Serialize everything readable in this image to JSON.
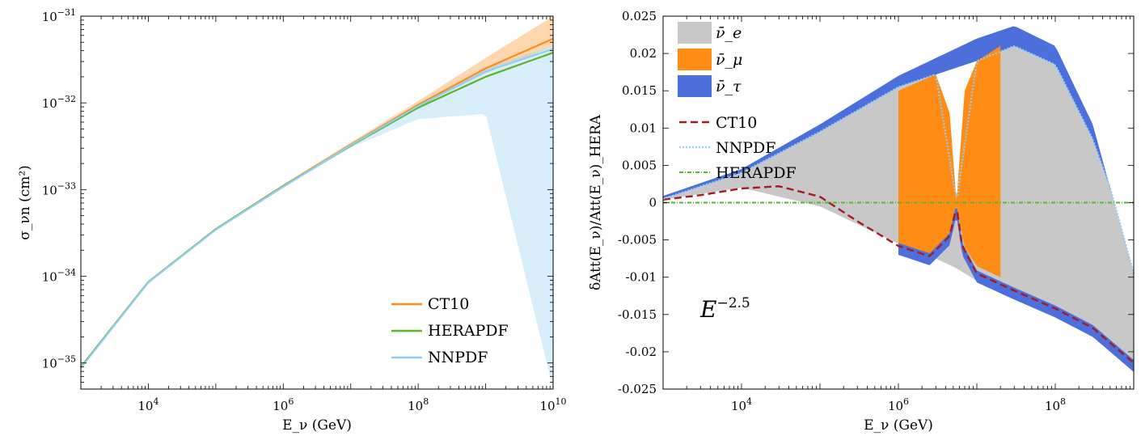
{
  "chart_data": [
    {
      "type": "line",
      "xscale": "log",
      "yscale": "log",
      "xlim": [
        1000,
        10000000000
      ],
      "ylim": [
        5e-36,
        1e-31
      ],
      "xlabel": "E_ν (GeV)",
      "ylabel": "σ_νn (cm²)",
      "x_ticks": [
        {
          "value": 10000,
          "base": "10",
          "exp": "4"
        },
        {
          "value": 1000000,
          "base": "10",
          "exp": "6"
        },
        {
          "value": 100000000,
          "base": "10",
          "exp": "8"
        },
        {
          "value": 10000000000,
          "base": "10",
          "exp": "10"
        }
      ],
      "y_ticks": [
        {
          "value": 1e-35,
          "base": "10",
          "exp": "−35"
        },
        {
          "value": 1e-34,
          "base": "10",
          "exp": "−34"
        },
        {
          "value": 1e-33,
          "base": "10",
          "exp": "−33"
        },
        {
          "value": 1e-32,
          "base": "10",
          "exp": "−32"
        },
        {
          "value": 1e-31,
          "base": "10",
          "exp": "−31"
        }
      ],
      "legend": {
        "position": "bottom-right",
        "entries": [
          "CT10",
          "HERAPDF",
          "NNPDF"
        ]
      },
      "series": [
        {
          "name": "CT10",
          "color": "#ff8c1a",
          "x": [
            1000,
            10000,
            100000,
            1000000,
            10000000,
            100000000,
            1000000000,
            10000000000
          ],
          "y": [
            9e-36,
            8.6e-35,
            3.5e-34,
            1.1e-33,
            3.3e-33,
            9.5e-33,
            2.5e-32,
            5.5e-32
          ],
          "band_upper": [
            9.3e-36,
            8.8e-35,
            3.6e-34,
            1.15e-33,
            3.5e-33,
            1.05e-32,
            3.3e-32,
            1e-31
          ],
          "band_lower": [
            8.8e-36,
            8.4e-35,
            3.4e-34,
            1.07e-33,
            3.2e-33,
            9e-33,
            2.2e-32,
            4.5e-32
          ]
        },
        {
          "name": "HERAPDF",
          "color": "#5db329",
          "x": [
            1000,
            10000,
            100000,
            1000000,
            10000000,
            100000000,
            1000000000,
            10000000000
          ],
          "y": [
            9e-36,
            8.6e-35,
            3.5e-34,
            1.1e-33,
            3.2e-33,
            8.8e-33,
            2e-32,
            3.8e-32
          ]
        },
        {
          "name": "NNPDF",
          "color": "#8ecff2",
          "x": [
            1000,
            10000,
            100000,
            1000000,
            10000000,
            100000000,
            1000000000,
            10000000000
          ],
          "y": [
            8.8e-36,
            8.5e-35,
            3.45e-34,
            1.08e-33,
            3.25e-33,
            9.2e-33,
            2.3e-32,
            4.2e-32
          ],
          "band_upper": [
            9e-36,
            8.7e-35,
            3.55e-34,
            1.12e-33,
            3.35e-33,
            9.8e-33,
            2.6e-32,
            4.5e-32
          ],
          "band_lower": [
            8.6e-36,
            8.3e-35,
            3.35e-34,
            1.04e-33,
            3.05e-33,
            6.5e-33,
            7.5e-33,
            5e-36
          ]
        }
      ]
    },
    {
      "type": "area",
      "xscale": "log",
      "xlim": [
        1000,
        1000000000
      ],
      "ylim": [
        -0.025,
        0.025
      ],
      "xlabel": "E_ν (GeV)",
      "ylabel": "δAtt(E_ν)/Att(E_ν)_HERA",
      "annotation": {
        "base": "E",
        "exp": "−2.5"
      },
      "x_ticks": [
        {
          "value": 10000,
          "base": "10",
          "exp": "4"
        },
        {
          "value": 1000000,
          "base": "10",
          "exp": "6"
        },
        {
          "value": 100000000,
          "base": "10",
          "exp": "8"
        }
      ],
      "y_ticks": [
        {
          "value": 0.025,
          "label": "0.025"
        },
        {
          "value": 0.02,
          "label": "0.02"
        },
        {
          "value": 0.015,
          "label": "0.015"
        },
        {
          "value": 0.01,
          "label": "0.01"
        },
        {
          "value": 0.005,
          "label": "0.005"
        },
        {
          "value": 0,
          "label": "0"
        },
        {
          "value": -0.005,
          "label": "-0.005"
        },
        {
          "value": -0.01,
          "label": "-0.01"
        },
        {
          "value": -0.015,
          "label": "-0.015"
        },
        {
          "value": -0.02,
          "label": "-0.02"
        },
        {
          "value": -0.025,
          "label": "-0.025"
        }
      ],
      "legend": {
        "position": "top-left",
        "entries": [
          "ν̄_e",
          "ν̄_μ",
          "ν̄_τ",
          "CT10",
          "NNPDF",
          "HERAPDF"
        ]
      },
      "bands": [
        {
          "name": "ν̄_e",
          "color": "#c8c8c8",
          "x": [
            1000,
            10000,
            100000,
            1000000,
            3000000,
            5500000,
            10000000,
            30000000,
            100000000,
            300000000,
            500000000,
            1000000000
          ],
          "upper": [
            0.0005,
            0.004,
            0.0095,
            0.0155,
            0.0172,
            0.0002,
            0.019,
            0.021,
            0.0185,
            0.0085,
            0.002,
            -0.0095
          ],
          "lower": [
            0.0004,
            0.002,
            -0.0005,
            -0.0055,
            -0.0075,
            -0.0088,
            -0.0105,
            -0.0125,
            -0.0145,
            -0.0175,
            -0.02,
            -0.0215
          ]
        },
        {
          "name": "ν̄_μ",
          "color": "#ff8c14",
          "x": [
            1000000,
            3000000,
            4500000,
            5500000,
            7000000,
            10000000,
            20000000
          ],
          "upper": [
            0.015,
            0.0172,
            0.012,
            0.0002,
            0.015,
            0.019,
            0.021
          ],
          "lower": [
            -0.0055,
            -0.0075,
            -0.005,
            -0.0005,
            -0.006,
            -0.0085,
            -0.01
          ]
        },
        {
          "name": "ν̄_τ",
          "color": "#4c6fdc",
          "x": [
            1000,
            10000,
            100000,
            1000000,
            10000000,
            30000000,
            100000000,
            300000000,
            1000000000
          ],
          "upper": [
            0.0009,
            0.0045,
            0.0105,
            0.017,
            0.022,
            0.0237,
            0.021,
            0.0105,
            -0.0095
          ],
          "lower": [
            0.0006,
            0.0035,
            0.0095,
            0.0155,
            0.019,
            0.021,
            0.0185,
            0.0085,
            -0.0115
          ]
        }
      ],
      "series": [
        {
          "name": "CT10",
          "color": "#a51c20",
          "x": [
            1000,
            3000,
            10000,
            30000,
            100000,
            300000,
            1000000,
            2500000,
            4500000,
            5500000,
            6500000,
            10000000,
            30000000,
            100000000,
            300000000,
            1000000000
          ],
          "y": [
            0.0004,
            0.001,
            0.0019,
            0.0022,
            0.0008,
            -0.0025,
            -0.0058,
            -0.0072,
            -0.0045,
            -0.0005,
            -0.0058,
            -0.0095,
            -0.0118,
            -0.0142,
            -0.0168,
            -0.0215
          ]
        },
        {
          "name": "NNPDF",
          "color": "#8ecff2",
          "x": [
            1000,
            10000,
            100000,
            1000000,
            3000000,
            5500000,
            10000000,
            30000000,
            100000000,
            300000000,
            500000000,
            1000000000
          ],
          "y": [
            0.0005,
            0.004,
            0.0095,
            0.0155,
            0.0172,
            0.0002,
            0.019,
            0.021,
            0.0185,
            0.0085,
            0.002,
            -0.0095
          ]
        },
        {
          "name": "HERAPDF",
          "color": "#5db329",
          "x": [
            1000,
            1000000000
          ],
          "y": [
            0,
            0
          ]
        }
      ]
    }
  ]
}
